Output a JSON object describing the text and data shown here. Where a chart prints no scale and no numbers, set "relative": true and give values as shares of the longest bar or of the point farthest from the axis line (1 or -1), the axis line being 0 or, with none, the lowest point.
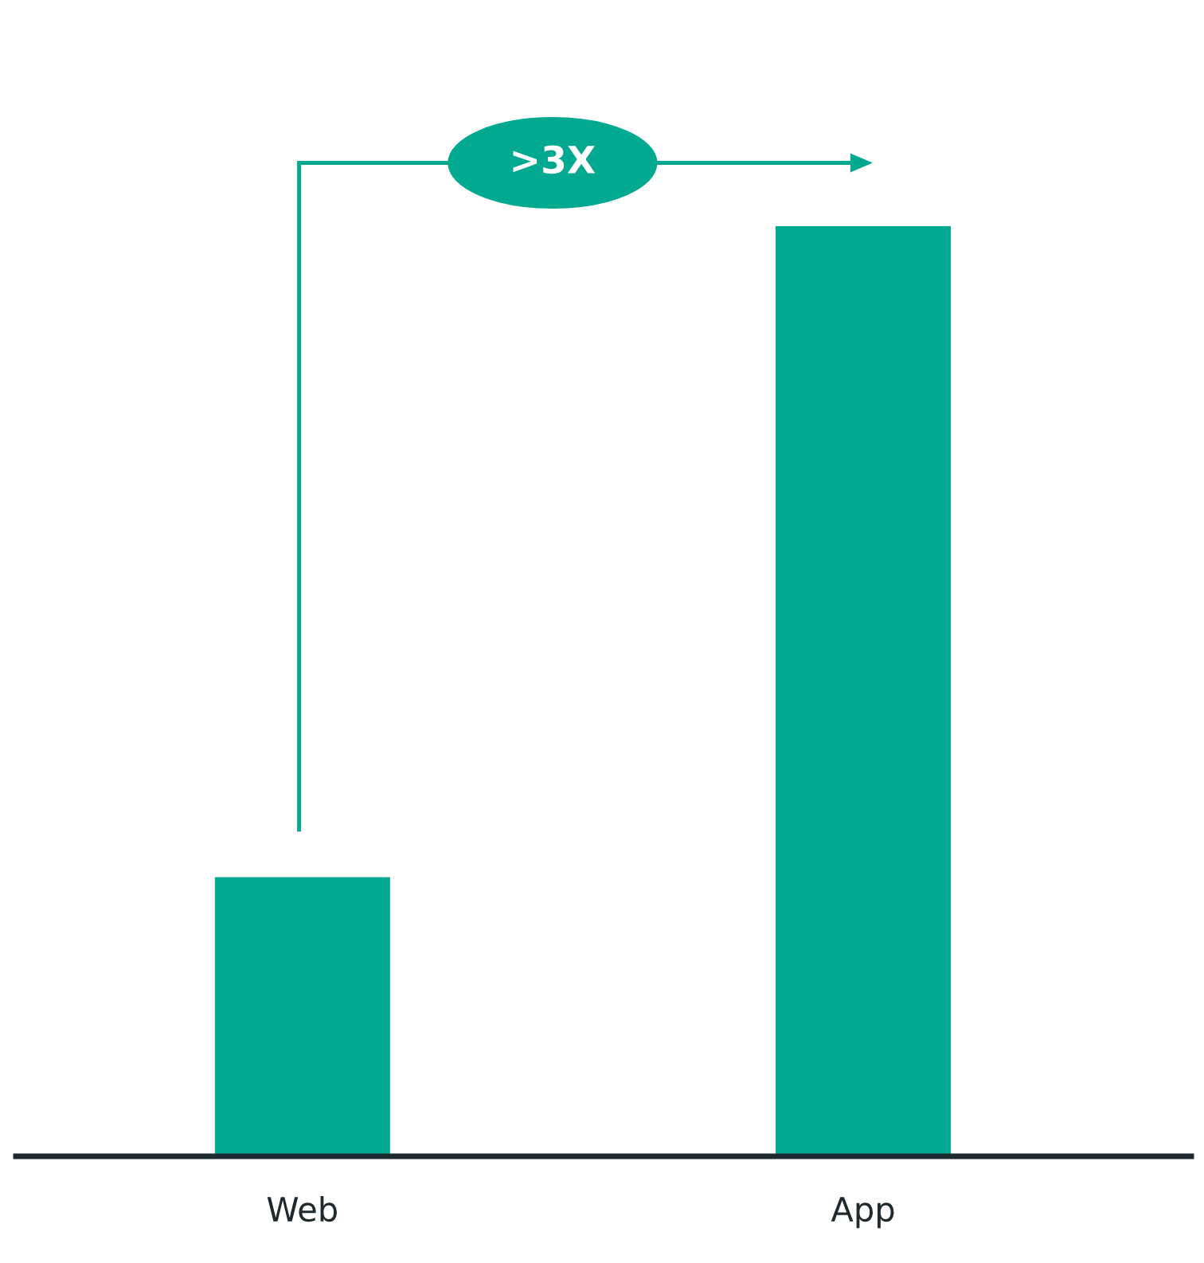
{
  "chart_data": {
    "type": "bar",
    "relative": true,
    "categories": [
      "Web",
      "App"
    ],
    "values": [
      0.3,
      1
    ],
    "color": "#00a98f",
    "annotations": [
      ">3X"
    ],
    "grid": false,
    "legend": false
  }
}
